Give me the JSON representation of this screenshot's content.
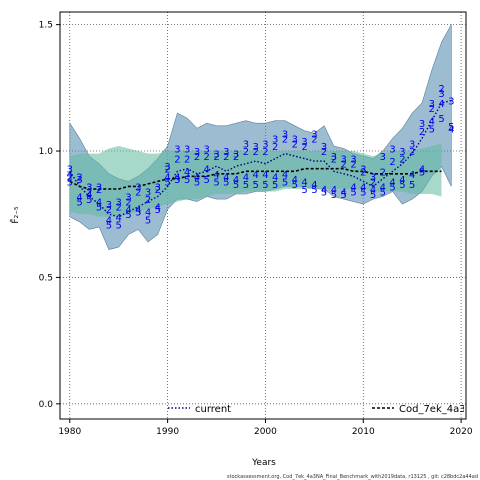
{
  "chart_data": {
    "type": "line",
    "xlabel": "Years",
    "ylabel": "F̄₂₋₅",
    "xlim": [
      1979,
      2020.5
    ],
    "ylim": [
      -0.06,
      1.55
    ],
    "x_ticks": [
      1980,
      1990,
      2000,
      2010,
      2020
    ],
    "y_ticks": [
      0.0,
      0.5,
      1.0,
      1.5
    ],
    "x_tick_labels": [
      "1980",
      "1990",
      "2000",
      "2010",
      "2020"
    ],
    "y_tick_labels": [
      "0.0",
      "0.5",
      "1.0",
      "1.5"
    ],
    "grid": true,
    "grid_style": "dotted",
    "legend_position": "bottom",
    "footer": "stockassessment.org, Cod_7ek_4a3NA_Final_Benchmark_with2019data, r13125 , git: c28bdc2a44ad",
    "series": [
      {
        "name": "current",
        "style": "dotted",
        "color": "#000080",
        "band_color": "#4a86ac",
        "x": [
          1980,
          1981,
          1982,
          1983,
          1984,
          1985,
          1986,
          1987,
          1988,
          1989,
          1990,
          1991,
          1992,
          1993,
          1994,
          1995,
          1996,
          1997,
          1998,
          1999,
          2000,
          2001,
          2002,
          2003,
          2004,
          2005,
          2006,
          2007,
          2008,
          2009,
          2010,
          2011,
          2012,
          2013,
          2014,
          2015,
          2016,
          2017,
          2018,
          2019
        ],
        "values": [
          0.92,
          0.86,
          0.82,
          0.79,
          0.75,
          0.74,
          0.76,
          0.78,
          0.8,
          0.82,
          0.86,
          0.92,
          0.93,
          0.91,
          0.92,
          0.94,
          0.92,
          0.94,
          0.95,
          0.96,
          0.95,
          0.97,
          0.99,
          0.98,
          0.97,
          0.96,
          0.96,
          0.92,
          0.91,
          0.9,
          0.88,
          0.86,
          0.89,
          0.92,
          0.95,
          0.99,
          1.05,
          1.12,
          1.19,
          1.2
        ],
        "lower": [
          0.74,
          0.72,
          0.69,
          0.7,
          0.61,
          0.62,
          0.67,
          0.69,
          0.64,
          0.67,
          0.77,
          0.81,
          0.81,
          0.8,
          0.82,
          0.81,
          0.81,
          0.83,
          0.83,
          0.84,
          0.84,
          0.85,
          0.86,
          0.86,
          0.86,
          0.85,
          0.85,
          0.82,
          0.81,
          0.8,
          0.79,
          0.81,
          0.82,
          0.84,
          0.79,
          0.81,
          0.84,
          0.9,
          0.94,
          0.86
        ],
        "upper": [
          1.11,
          1.05,
          0.98,
          0.95,
          0.91,
          0.89,
          0.88,
          0.9,
          0.93,
          0.97,
          1.02,
          1.15,
          1.13,
          1.09,
          1.11,
          1.1,
          1.1,
          1.11,
          1.12,
          1.11,
          1.11,
          1.12,
          1.12,
          1.1,
          1.08,
          1.07,
          1.1,
          1.02,
          1.01,
          0.99,
          0.98,
          0.97,
          1.0,
          1.05,
          1.09,
          1.15,
          1.19,
          1.32,
          1.43,
          1.5
        ]
      },
      {
        "name": "Cod_7ek_4a3NA_Final_Benchmark_with2019data",
        "style": "dashed",
        "color": "#000000",
        "band_color": "#5fb9a0",
        "x": [
          1980,
          1981,
          1982,
          1983,
          1984,
          1985,
          1986,
          1987,
          1988,
          1989,
          1990,
          1991,
          1992,
          1993,
          1994,
          1995,
          1996,
          1997,
          1998,
          1999,
          2000,
          2001,
          2002,
          2003,
          2004,
          2005,
          2006,
          2007,
          2008,
          2009,
          2010,
          2011,
          2012,
          2013,
          2014,
          2015,
          2016,
          2017,
          2018
        ],
        "values": [
          0.88,
          0.86,
          0.85,
          0.85,
          0.85,
          0.85,
          0.86,
          0.86,
          0.87,
          0.88,
          0.89,
          0.89,
          0.9,
          0.9,
          0.9,
          0.91,
          0.91,
          0.91,
          0.92,
          0.92,
          0.92,
          0.92,
          0.92,
          0.92,
          0.93,
          0.93,
          0.93,
          0.93,
          0.93,
          0.92,
          0.92,
          0.91,
          0.91,
          0.91,
          0.91,
          0.91,
          0.92,
          0.92,
          0.92
        ],
        "lower": [
          0.76,
          0.75,
          0.75,
          0.74,
          0.74,
          0.74,
          0.75,
          0.76,
          0.77,
          0.78,
          0.79,
          0.8,
          0.81,
          0.81,
          0.82,
          0.83,
          0.83,
          0.83,
          0.84,
          0.84,
          0.84,
          0.84,
          0.85,
          0.85,
          0.85,
          0.85,
          0.85,
          0.85,
          0.85,
          0.85,
          0.85,
          0.84,
          0.84,
          0.84,
          0.84,
          0.83,
          0.83,
          0.83,
          0.82
        ],
        "upper": [
          0.98,
          0.99,
          0.99,
          0.99,
          1.01,
          1.02,
          1.01,
          1.0,
          0.99,
          0.99,
          1.0,
          1.0,
          1.0,
          1.0,
          1.0,
          1.0,
          1.0,
          1.0,
          1.0,
          1.0,
          1.0,
          1.0,
          1.0,
          1.0,
          1.0,
          1.0,
          1.0,
          1.0,
          1.0,
          1.0,
          0.99,
          0.98,
          0.99,
          1.0,
          1.0,
          1.0,
          1.01,
          1.02,
          1.03
        ]
      }
    ],
    "retro_labels": [
      {
        "text": "2",
        "x": [
          1980,
          1981,
          1982,
          1983,
          1984,
          1985,
          1986,
          1987,
          1988,
          1989,
          1990,
          1991,
          1992,
          1993,
          1994,
          1995,
          1996,
          1997,
          1998,
          1999,
          2000,
          2001,
          2002,
          2003,
          2004,
          2005,
          2006,
          2007,
          2008,
          2009,
          2010,
          2011,
          2012,
          2013,
          2014,
          2015,
          2016,
          2017,
          2018
        ],
        "values": [
          0.9,
          0.9,
          0.84,
          0.85,
          0.77,
          0.78,
          0.8,
          0.84,
          0.81,
          0.85,
          0.93,
          0.97,
          0.97,
          0.98,
          0.98,
          0.98,
          0.98,
          0.98,
          1.0,
          1.0,
          1.0,
          1.02,
          1.05,
          1.03,
          1.02,
          1.05,
          1.0,
          0.97,
          0.95,
          0.95,
          0.92,
          0.88,
          0.92,
          0.96,
          0.97,
          1.0,
          1.08,
          1.17,
          1.25
        ]
      },
      {
        "text": "3",
        "x": [
          1980,
          1981,
          1982,
          1983,
          1984,
          1985,
          1986,
          1987,
          1988,
          1989,
          1990,
          1991,
          1992,
          1993,
          1994,
          1995,
          1996,
          1997,
          1998,
          1999,
          2000,
          2001,
          2002,
          2003,
          2004,
          2005,
          2006,
          2007,
          2008,
          2009,
          2010,
          2011,
          2012,
          2013,
          2014,
          2015,
          2016,
          2017,
          2018,
          2019
        ],
        "values": [
          0.93,
          0.89,
          0.86,
          0.86,
          0.79,
          0.8,
          0.82,
          0.86,
          0.84,
          0.86,
          0.94,
          1.01,
          1.01,
          1.0,
          1.01,
          0.99,
          1.0,
          0.99,
          1.03,
          1.02,
          1.03,
          1.05,
          1.07,
          1.05,
          1.04,
          1.07,
          1.02,
          0.98,
          0.97,
          0.97,
          0.93,
          0.9,
          0.98,
          1.01,
          1.0,
          1.03,
          1.11,
          1.19,
          1.23,
          1.2
        ]
      },
      {
        "text": "4",
        "x": [
          1980,
          1981,
          1982,
          1983,
          1984,
          1985,
          1986,
          1987,
          1988,
          1989,
          1990,
          1991,
          1992,
          1993,
          1994,
          1995,
          1996,
          1997,
          1998,
          1999,
          2000,
          2001,
          2002,
          2003,
          2004,
          2005,
          2006,
          2007,
          2008,
          2009,
          2010,
          2011,
          2012,
          2013,
          2014,
          2015,
          2016,
          2017,
          2018,
          2019
        ],
        "values": [
          0.91,
          0.82,
          0.83,
          0.8,
          0.73,
          0.74,
          0.77,
          0.77,
          0.76,
          0.78,
          0.9,
          0.9,
          0.92,
          0.9,
          0.93,
          0.91,
          0.9,
          0.89,
          0.9,
          0.91,
          0.91,
          0.9,
          0.91,
          0.89,
          0.88,
          0.87,
          0.85,
          0.85,
          0.84,
          0.86,
          0.86,
          0.85,
          0.86,
          0.88,
          0.89,
          0.91,
          0.93,
          1.12,
          1.19,
          1.09
        ]
      },
      {
        "text": "5",
        "x": [
          1980,
          1981,
          1982,
          1983,
          1984,
          1985,
          1986,
          1987,
          1988,
          1989,
          1990,
          1991,
          1992,
          1993,
          1994,
          1995,
          1996,
          1997,
          1998,
          1999,
          2000,
          2001,
          2002,
          2003,
          2004,
          2005,
          2006,
          2007,
          2008,
          2009,
          2010,
          2011,
          2012,
          2013,
          2014,
          2015,
          2016,
          2017,
          2018,
          2019
        ],
        "values": [
          0.88,
          0.8,
          0.81,
          0.78,
          0.71,
          0.71,
          0.75,
          0.76,
          0.73,
          0.77,
          0.88,
          0.89,
          0.89,
          0.88,
          0.89,
          0.88,
          0.88,
          0.87,
          0.87,
          0.87,
          0.87,
          0.87,
          0.88,
          0.87,
          0.85,
          0.85,
          0.84,
          0.83,
          0.83,
          0.84,
          0.84,
          0.83,
          0.84,
          0.86,
          0.87,
          0.87,
          0.92,
          1.09,
          1.13,
          1.1
        ]
      }
    ]
  }
}
